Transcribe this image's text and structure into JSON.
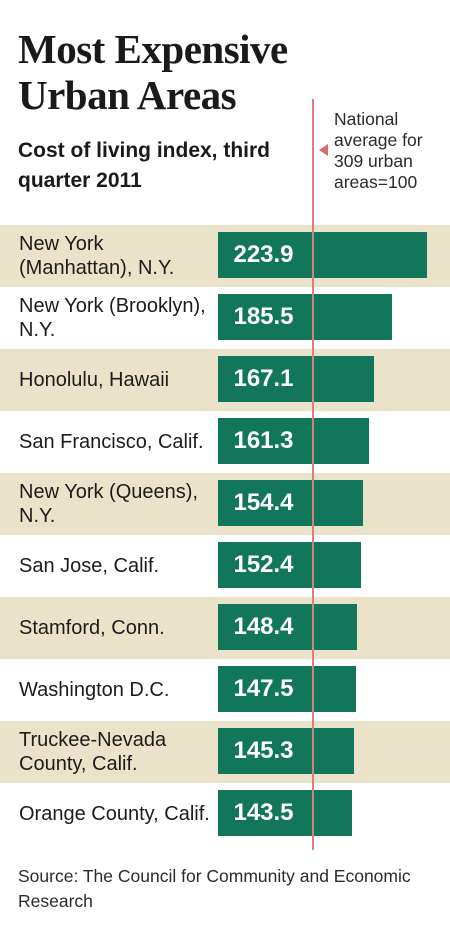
{
  "title": "Most Expensive Urban Areas",
  "subtitle": "Cost of living index, third quarter 2011",
  "reference_note": "National average for 309 urban areas=100",
  "source": "Source: The Council for Community and Economic Research",
  "colors": {
    "bar": "#12775a",
    "shade": "#eae3ca",
    "reference_line": "#d88080"
  },
  "chart_data": {
    "type": "bar",
    "orientation": "horizontal",
    "title": "Most Expensive Urban Areas",
    "subtitle": "Cost of living index, third quarter 2011",
    "categories": [
      "New York (Manhattan), N.Y.",
      "New York (Brooklyn), N.Y.",
      "Honolulu, Hawaii",
      "San Francisco, Calif.",
      "New York (Queens), N.Y.",
      "San Jose, Calif.",
      "Stamford, Conn.",
      "Washington D.C.",
      "Truckee-Nevada County, Calif.",
      "Orange County, Calif."
    ],
    "values": [
      223.9,
      185.5,
      167.1,
      161.3,
      154.4,
      152.4,
      148.4,
      147.5,
      145.3,
      143.5
    ],
    "value_labels": [
      "223.9",
      "185.5",
      "167.1",
      "161.3",
      "154.4",
      "152.4",
      "148.4",
      "147.5",
      "145.3",
      "143.5"
    ],
    "reference_value": 100,
    "xlim": [
      0,
      230
    ],
    "grid": false,
    "legend": "none"
  }
}
